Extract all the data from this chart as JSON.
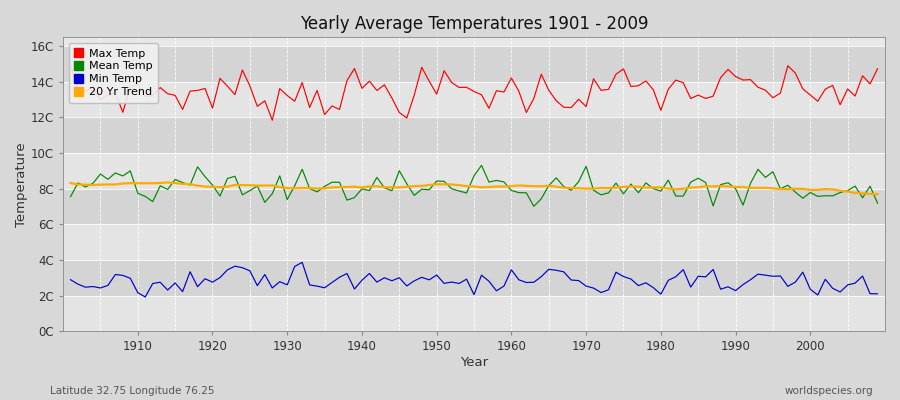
{
  "title": "Yearly Average Temperatures 1901 - 2009",
  "xlabel": "Year",
  "ylabel": "Temperature",
  "subtitle_left": "Latitude 32.75 Longitude 76.25",
  "subtitle_right": "worldspecies.org",
  "years": [
    1901,
    1902,
    1903,
    1904,
    1905,
    1906,
    1907,
    1908,
    1909,
    1910,
    1911,
    1912,
    1913,
    1914,
    1915,
    1916,
    1917,
    1918,
    1919,
    1920,
    1921,
    1922,
    1923,
    1924,
    1925,
    1926,
    1927,
    1928,
    1929,
    1930,
    1931,
    1932,
    1933,
    1934,
    1935,
    1936,
    1937,
    1938,
    1939,
    1940,
    1941,
    1942,
    1943,
    1944,
    1945,
    1946,
    1947,
    1948,
    1949,
    1950,
    1951,
    1952,
    1953,
    1954,
    1955,
    1956,
    1957,
    1958,
    1959,
    1960,
    1961,
    1962,
    1963,
    1964,
    1965,
    1966,
    1967,
    1968,
    1969,
    1970,
    1971,
    1972,
    1973,
    1974,
    1975,
    1976,
    1977,
    1978,
    1979,
    1980,
    1981,
    1982,
    1983,
    1984,
    1985,
    1986,
    1987,
    1988,
    1989,
    1990,
    1991,
    1992,
    1993,
    1994,
    1995,
    1996,
    1997,
    1998,
    1999,
    2000,
    2001,
    2002,
    2003,
    2004,
    2005,
    2006,
    2007,
    2008,
    2009
  ],
  "yticks": [
    0,
    2,
    4,
    6,
    8,
    10,
    12,
    14,
    16
  ],
  "ytick_labels": [
    "0C",
    "2C",
    "4C",
    "6C",
    "8C",
    "10C",
    "12C",
    "14C",
    "16C"
  ],
  "ylim": [
    0,
    16.5
  ],
  "xlim": [
    1900,
    2010
  ],
  "max_color": "#ff0000",
  "mean_color": "#008800",
  "min_color": "#0000cc",
  "trend_color": "#ffaa00",
  "bg_color": "#d8d8d8",
  "plot_bg_light": "#e8e8e8",
  "plot_bg_dark": "#d8d8d8",
  "grid_color": "#ffffff",
  "legend_labels": [
    "Max Temp",
    "Mean Temp",
    "Min Temp",
    "20 Yr Trend"
  ],
  "legend_colors": [
    "#ff0000",
    "#008800",
    "#0000cc",
    "#ffaa00"
  ],
  "band_colors": [
    "#e0e0e0",
    "#d0d0d0"
  ]
}
